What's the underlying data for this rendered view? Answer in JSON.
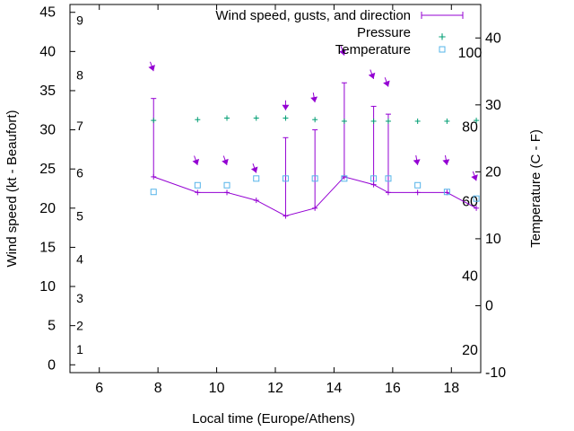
{
  "chart_data": {
    "type": "line",
    "xlabel": "Local time (Europe/Athens)",
    "ylabel": "Wind speed (kt - Beaufort)",
    "y2label": "Temperature (C - F)",
    "xlim": [
      5,
      19
    ],
    "ylim": [
      -1,
      46
    ],
    "y2lim": [
      -10,
      45
    ],
    "x_ticks": [
      "6",
      "8",
      "10",
      "12",
      "14",
      "16",
      "18"
    ],
    "y_ticks": [
      "0",
      "5",
      "10",
      "15",
      "20",
      "25",
      "30",
      "35",
      "40",
      "45"
    ],
    "y2_ticks": [
      "-10",
      "0",
      "10",
      "20",
      "30",
      "40"
    ],
    "beaufort_labels": [
      "1",
      "2",
      "3",
      "4",
      "5",
      "6",
      "7",
      "8",
      "9"
    ],
    "fahrenheit_labels": [
      "20",
      "40",
      "60",
      "80",
      "100"
    ],
    "legend": {
      "wind": "Wind speed, gusts, and direction",
      "pressure": "Pressure",
      "temperature": "Temperature"
    },
    "legend_position": "top-right",
    "colors": {
      "wind": "#9400d3",
      "pressure": "#009e73",
      "temperature": "#56b4e9",
      "axes": "#000000"
    },
    "series": [
      {
        "name": "Wind speed, gusts, and direction",
        "x": [
          7.85,
          9.35,
          10.35,
          11.35,
          12.35,
          13.35,
          14.35,
          15.35,
          15.85,
          16.85,
          17.85,
          18.85
        ],
        "speed": [
          24,
          22,
          22,
          21,
          19,
          20,
          24,
          23,
          22,
          22,
          22,
          20
        ],
        "gust": [
          34,
          22,
          22,
          21,
          29,
          30,
          36,
          33,
          32,
          22,
          22,
          20
        ],
        "arrow_at": [
          37.5,
          25.5,
          25.5,
          24.5,
          32.5,
          33.5,
          39.5,
          36.5,
          35.5,
          25.5,
          25.5,
          23.5
        ],
        "arrow_direction_deg": [
          20,
          20,
          20,
          20,
          0,
          10,
          20,
          20,
          20,
          10,
          10,
          20
        ]
      },
      {
        "name": "Pressure",
        "x": [
          7.85,
          9.35,
          10.35,
          11.35,
          12.35,
          13.35,
          14.35,
          15.35,
          15.85,
          16.85,
          17.85,
          18.85
        ],
        "values": [
          31.2,
          31.3,
          31.5,
          31.5,
          31.5,
          31.3,
          31.1,
          31.1,
          31.1,
          31.1,
          31.1,
          31.2
        ]
      },
      {
        "name": "Temperature",
        "x": [
          7.85,
          9.35,
          10.35,
          11.35,
          12.35,
          13.35,
          14.35,
          15.35,
          15.85,
          16.85,
          17.85,
          18.85
        ],
        "values": [
          17,
          18,
          18,
          19,
          19,
          19,
          19,
          19,
          19,
          18,
          17,
          16
        ]
      }
    ]
  }
}
